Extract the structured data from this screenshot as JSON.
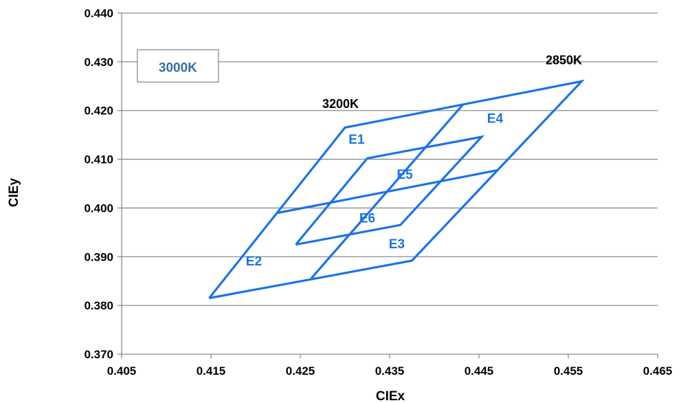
{
  "chart_data": {
    "type": "line",
    "xlabel": "CIEx",
    "ylabel": "CIEy",
    "xlim": [
      0.405,
      0.465
    ],
    "ylim": [
      0.37,
      0.44
    ],
    "x_ticks": [
      "0.405",
      "0.415",
      "0.425",
      "0.435",
      "0.445",
      "0.455",
      "0.465"
    ],
    "y_ticks": [
      "0.370",
      "0.380",
      "0.390",
      "0.400",
      "0.410",
      "0.420",
      "0.430",
      "0.440"
    ],
    "grid": "horizontal",
    "line_color": "#1a73e8",
    "label_color": "#1a73e8",
    "box_label": {
      "text": "3000K",
      "color": "#3a6ea5",
      "x": 0.4113,
      "y": 0.4288
    },
    "cct_labels": [
      {
        "text": "3200K",
        "x": 0.4295,
        "y": 0.4205
      },
      {
        "text": "2850K",
        "x": 0.4545,
        "y": 0.4295
      }
    ],
    "series": [
      {
        "points": [
          [
            0.4148,
            0.3815
          ],
          [
            0.43,
            0.4165
          ],
          [
            0.4565,
            0.426
          ],
          [
            0.4375,
            0.3892
          ],
          [
            0.4148,
            0.3815
          ]
        ]
      },
      {
        "points": [
          [
            0.4225,
            0.399
          ],
          [
            0.4472,
            0.4078
          ]
        ]
      },
      {
        "points": [
          [
            0.4262,
            0.3855
          ],
          [
            0.4432,
            0.4212
          ]
        ]
      },
      {
        "points": [
          [
            0.4245,
            0.3925
          ],
          [
            0.4325,
            0.4102
          ],
          [
            0.4453,
            0.4146
          ],
          [
            0.4362,
            0.3965
          ],
          [
            0.4245,
            0.3925
          ]
        ]
      }
    ],
    "region_labels": [
      {
        "text": "E1",
        "x": 0.4313,
        "y": 0.4132
      },
      {
        "text": "E2",
        "x": 0.4198,
        "y": 0.3882
      },
      {
        "text": "E3",
        "x": 0.4358,
        "y": 0.3917
      },
      {
        "text": "E4",
        "x": 0.4468,
        "y": 0.4175
      },
      {
        "text": "E5",
        "x": 0.4367,
        "y": 0.406
      },
      {
        "text": "E6",
        "x": 0.4325,
        "y": 0.397
      }
    ]
  }
}
